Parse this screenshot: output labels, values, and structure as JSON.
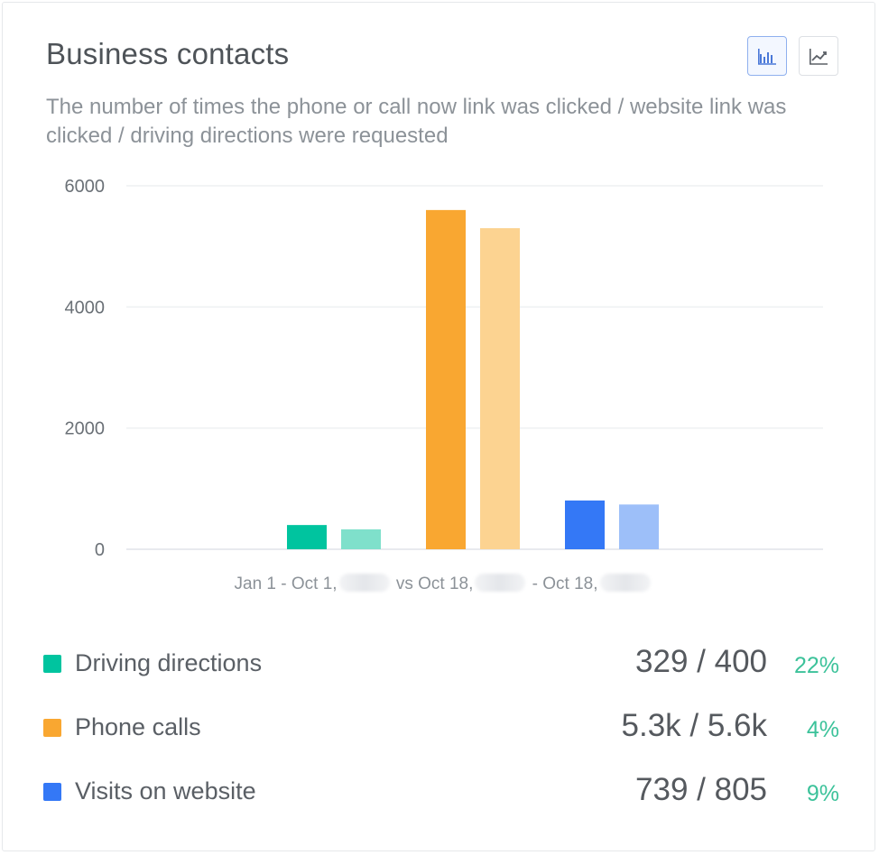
{
  "header": {
    "title": "Business contacts",
    "subtitle": "The number of times the phone or call now link was clicked / website link was clicked / driving directions were requested",
    "toggles": [
      {
        "icon": "bar-chart-icon",
        "active": true
      },
      {
        "icon": "line-chart-icon",
        "active": false
      }
    ]
  },
  "chart_data": {
    "type": "bar",
    "ylim": [
      0,
      6000
    ],
    "yticks": [
      "0",
      "2000",
      "4000",
      "6000"
    ],
    "grid": true,
    "xlabel": {
      "part1": "Jan 1 - Oct 1,",
      "part2": "vs Oct 18,",
      "part3": "- Oct 18,"
    },
    "series": [
      {
        "name": "Driving directions",
        "values": [
          400,
          329
        ],
        "colors": [
          "#00c49f",
          "#7fe0cb"
        ]
      },
      {
        "name": "Phone calls",
        "values": [
          5600,
          5300
        ],
        "colors": [
          "#f9a731",
          "#fcd391"
        ]
      },
      {
        "name": "Visits on website",
        "values": [
          805,
          739
        ],
        "colors": [
          "#3478f6",
          "#9dbff9"
        ]
      }
    ]
  },
  "legend": [
    {
      "label": "Driving directions",
      "values": "329 / 400",
      "pct": "22%",
      "color": "#00c49f"
    },
    {
      "label": "Phone calls",
      "values": "5.3k / 5.6k",
      "pct": "4%",
      "color": "#f9a731"
    },
    {
      "label": "Visits on website",
      "values": "739 / 805",
      "pct": "9%",
      "color": "#3478f6"
    }
  ]
}
